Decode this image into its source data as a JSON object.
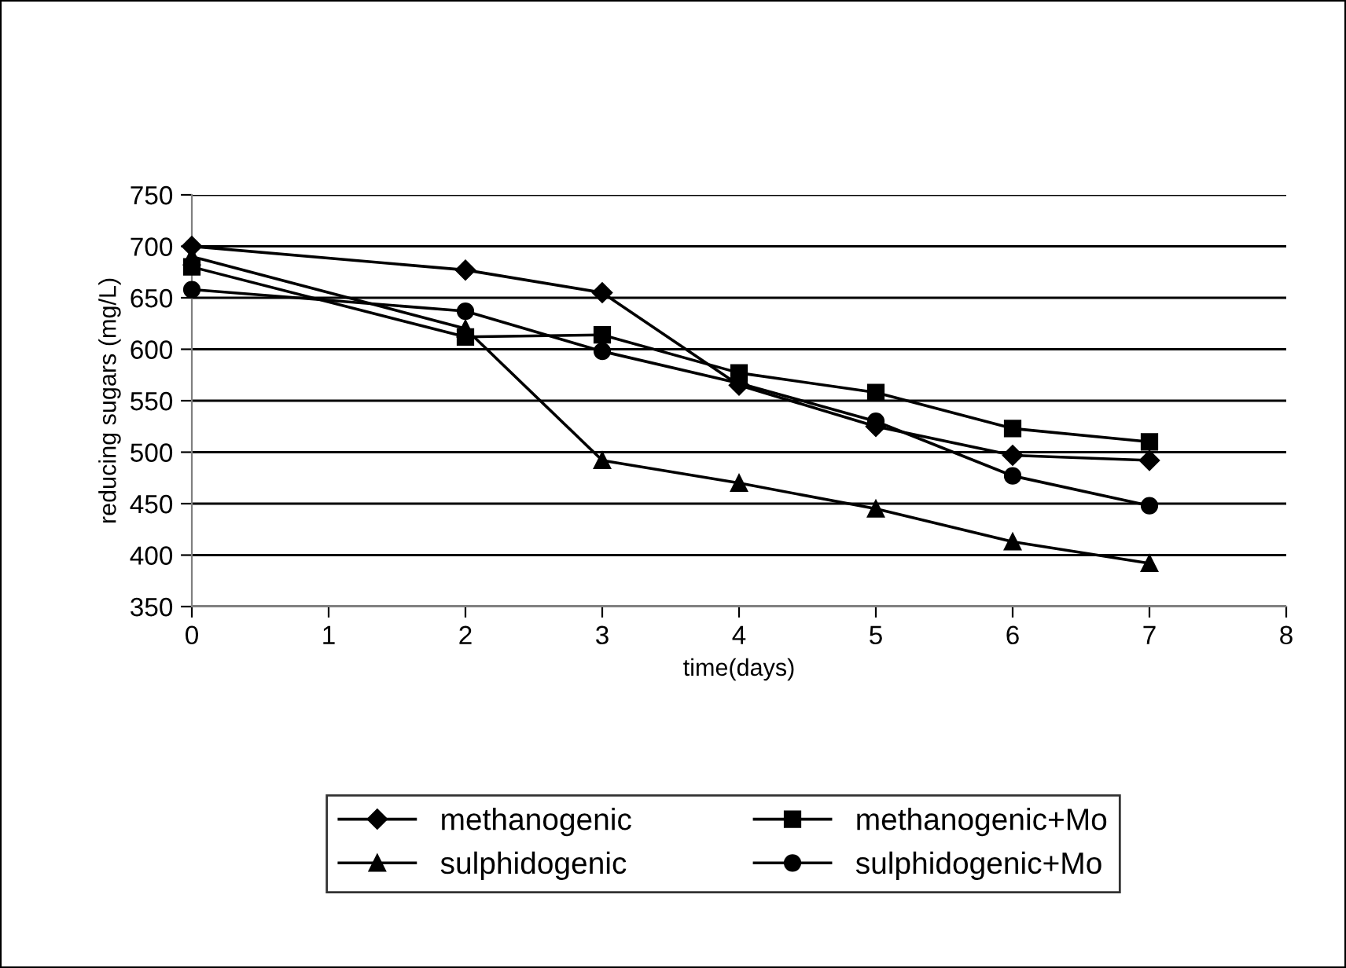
{
  "chart_data": {
    "type": "line",
    "xlabel": "time(days)",
    "ylabel": "reducing sugars (mg/L)",
    "x": [
      0,
      2,
      3,
      4,
      5,
      6,
      7
    ],
    "xlim": [
      0,
      8
    ],
    "xticks": [
      0,
      1,
      2,
      3,
      4,
      5,
      6,
      7,
      8
    ],
    "ylim": [
      350,
      750
    ],
    "yticks": [
      350,
      400,
      450,
      500,
      550,
      600,
      650,
      700,
      750
    ],
    "grid": "y",
    "legend": "bottom",
    "line_style": "solid",
    "series": [
      {
        "name": "methanogenic",
        "color": "#000000",
        "marker": "diamond",
        "values": [
          700,
          677,
          655,
          565,
          525,
          497,
          492
        ]
      },
      {
        "name": "methanogenic+Mo",
        "color": "#000000",
        "marker": "square",
        "values": [
          680,
          612,
          614,
          577,
          558,
          523,
          510
        ]
      },
      {
        "name": "sulphidogenic",
        "color": "#000000",
        "marker": "triangle",
        "values": [
          690,
          620,
          492,
          470,
          445,
          413,
          392
        ]
      },
      {
        "name": "sulphidogenic+Mo",
        "color": "#000000",
        "marker": "circle",
        "values": [
          658,
          637,
          598,
          567,
          530,
          477,
          448
        ]
      }
    ]
  }
}
